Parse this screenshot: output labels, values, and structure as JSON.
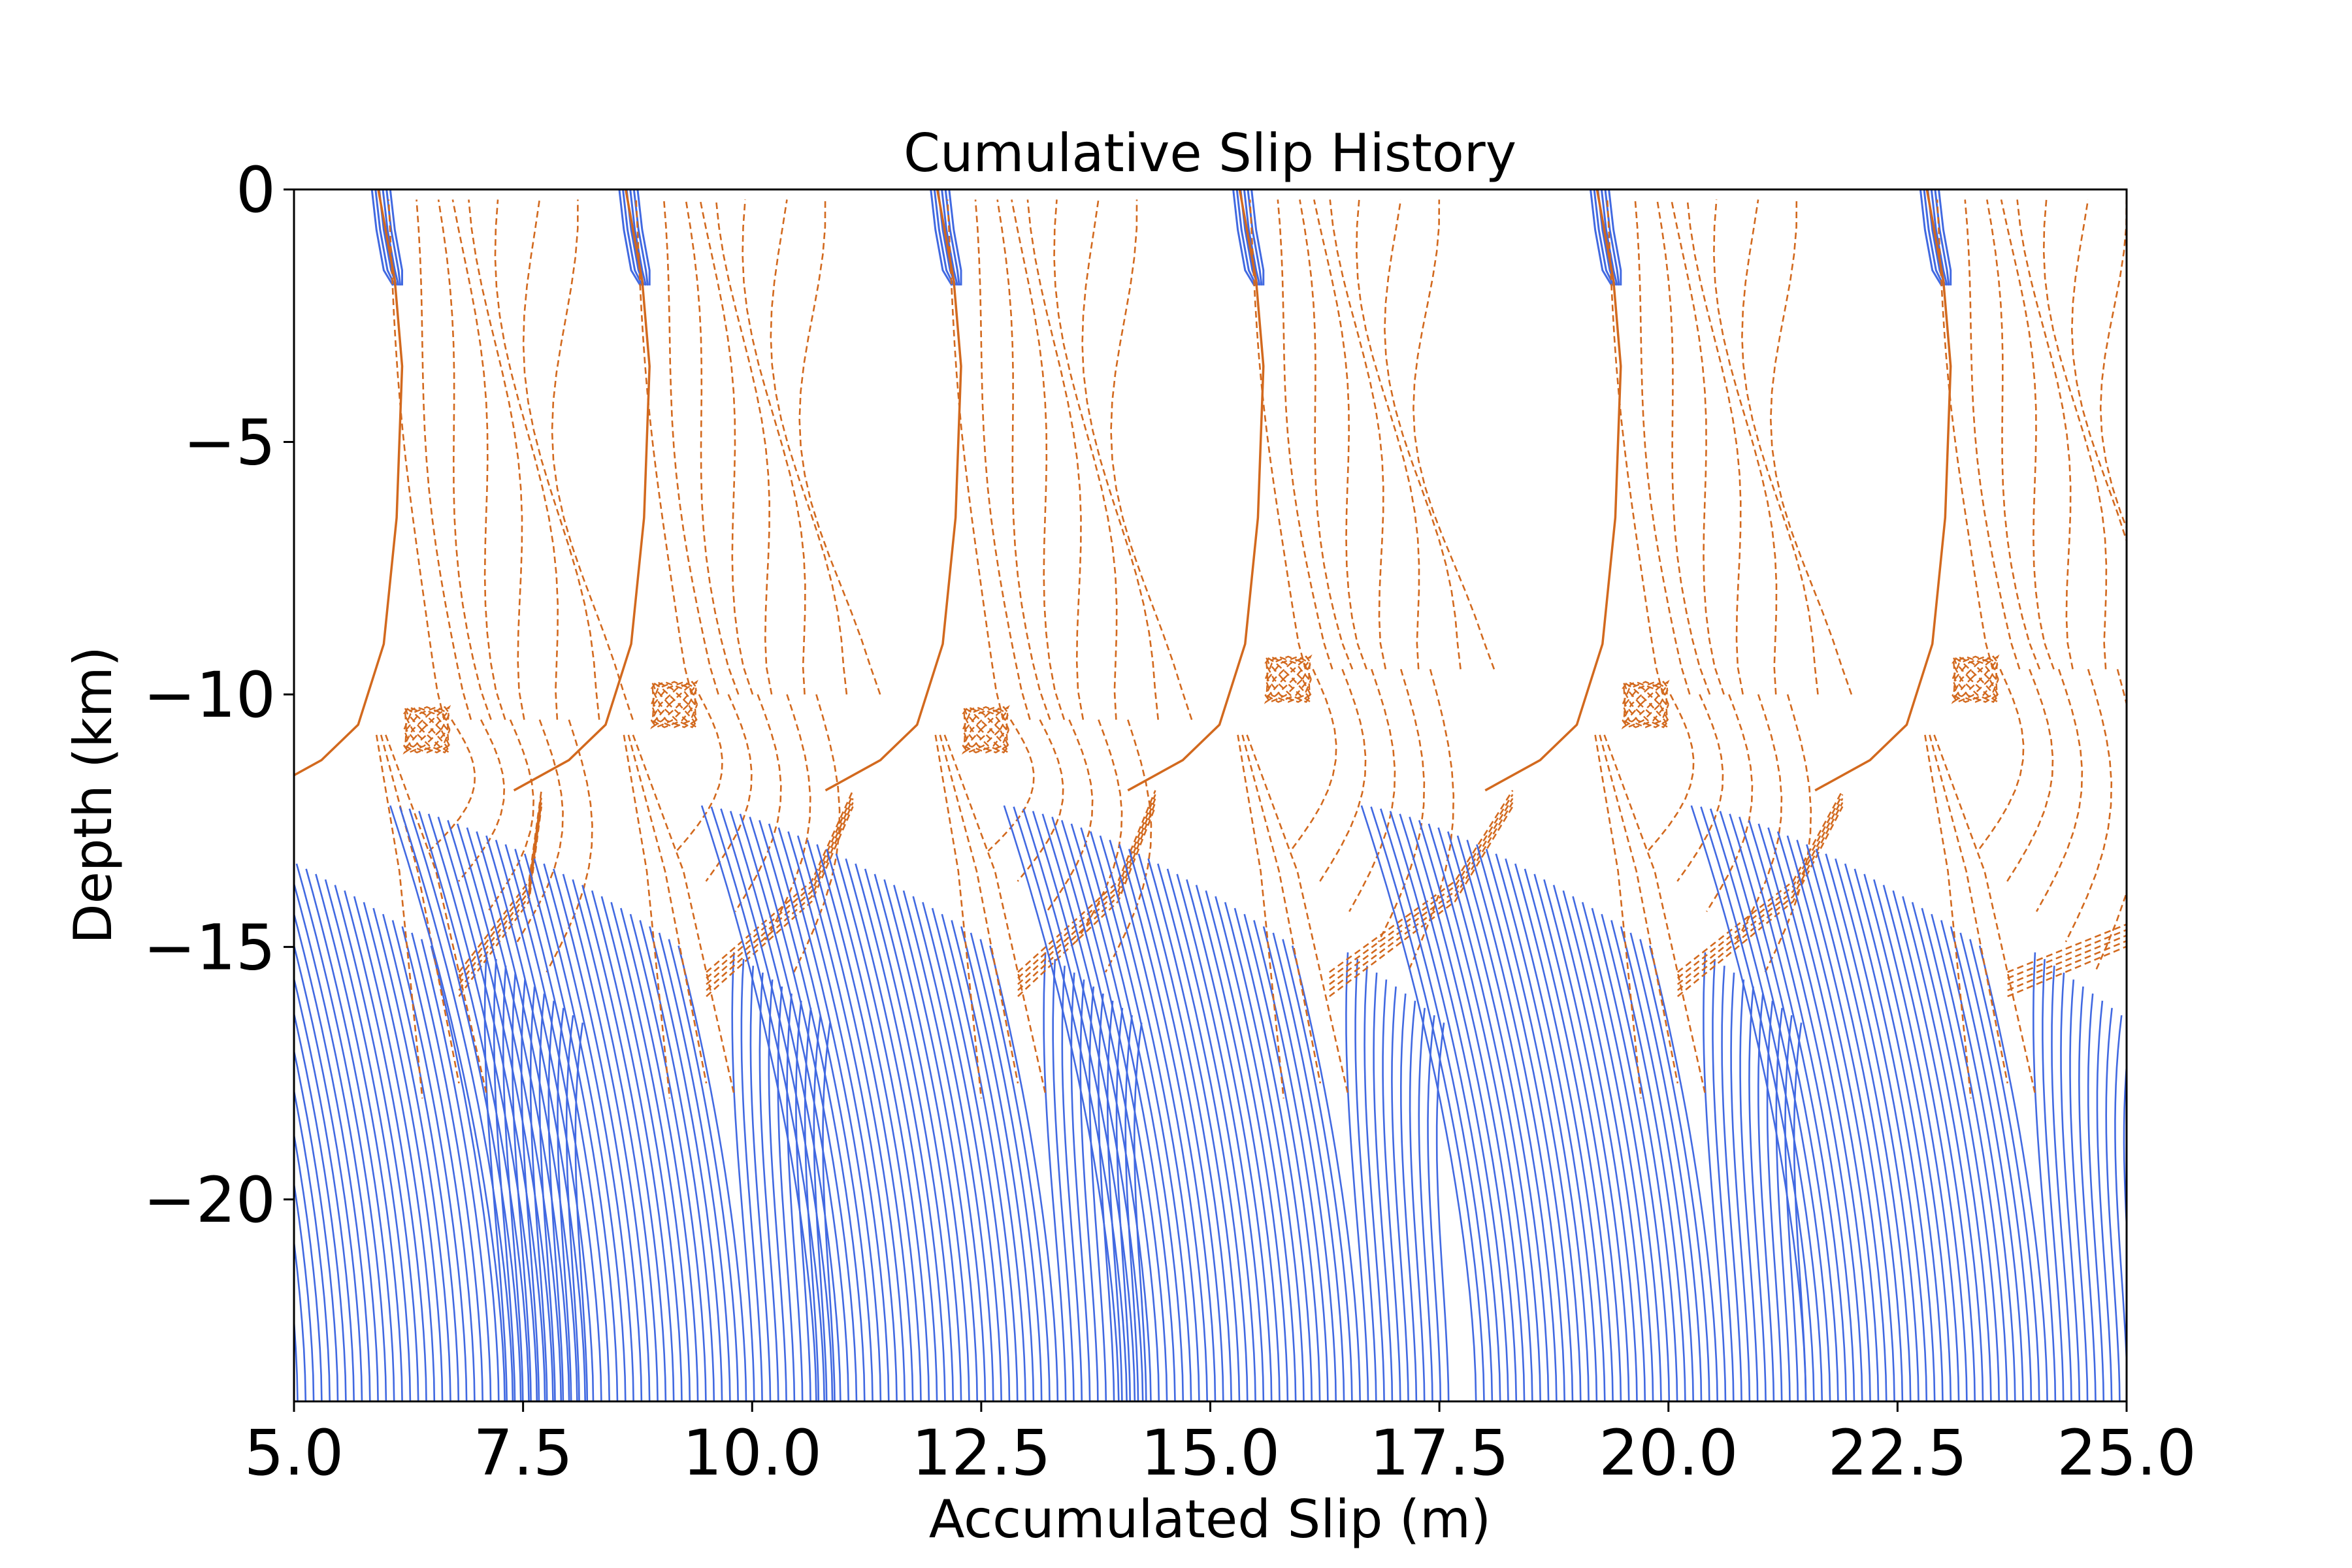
{
  "chart_data": {
    "type": "line",
    "title": "Cumulative Slip History",
    "xlabel": "Accumulated Slip (m)",
    "ylabel": "Depth (km)",
    "xlim": [
      5.0,
      25.0
    ],
    "ylim": [
      -24.0,
      0.0
    ],
    "x_ticks": [
      "5.0",
      "7.5",
      "10.0",
      "12.5",
      "15.0",
      "17.5",
      "20.0",
      "22.5",
      "25.0"
    ],
    "y_ticks": [
      "0",
      "−5",
      "−10",
      "−15",
      "−20"
    ],
    "grid": false,
    "legend": "none",
    "colors": {
      "interseismic": "#4169e1",
      "coseismic": "#d2691e"
    },
    "line_styles": {
      "interseismic": "solid",
      "coseismic": "dashed"
    },
    "earthquake_cycles": [
      {
        "event_slip_start": 5.9,
        "event_slip_end": 6.3,
        "nucleation_depth": -10.5
      },
      {
        "event_slip_start": 8.6,
        "event_slip_end": 9.0,
        "nucleation_depth": -10.0
      },
      {
        "event_slip_start": 12.0,
        "event_slip_end": 12.4,
        "nucleation_depth": -10.5
      },
      {
        "event_slip_start": 15.3,
        "event_slip_end": 15.8,
        "nucleation_depth": -9.5
      },
      {
        "event_slip_start": 19.2,
        "event_slip_end": 19.6,
        "nucleation_depth": -10.0
      },
      {
        "event_slip_start": 22.8,
        "event_slip_end": 23.2,
        "nucleation_depth": -9.5
      }
    ]
  }
}
